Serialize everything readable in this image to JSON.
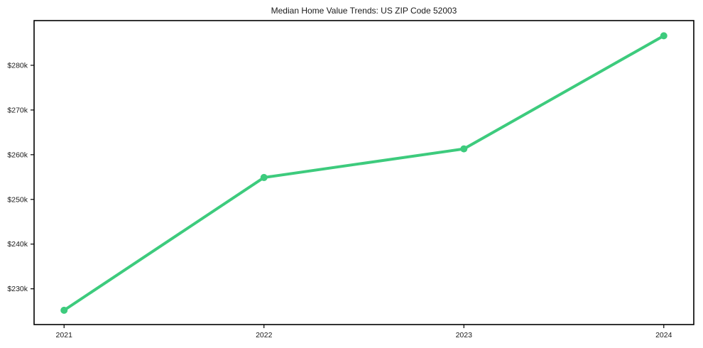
{
  "colors": {
    "line": "#3dcb7d",
    "frame": "#000000",
    "text": "#1a1a1a",
    "background": "#ffffff"
  },
  "chart_data": {
    "type": "line",
    "title": "Median Home Value Trends: US ZIP Code 52003",
    "x": [
      2021,
      2022,
      2023,
      2024
    ],
    "x_tick_labels": [
      "2021",
      "2022",
      "2023",
      "2024"
    ],
    "series": [
      {
        "name": "median_home_value",
        "values": [
          225200,
          254900,
          261300,
          286600
        ]
      }
    ],
    "y_ticks": [
      230000,
      240000,
      250000,
      260000,
      270000,
      280000
    ],
    "y_tick_labels": [
      "$230k",
      "$240k",
      "$250k",
      "$260k",
      "$270k",
      "$280k"
    ],
    "xlim": [
      2020.85,
      2024.15
    ],
    "ylim": [
      222000,
      290000
    ],
    "grid": false,
    "legend": "none",
    "marker": "circle",
    "line_width": 4,
    "marker_radius": 5
  }
}
